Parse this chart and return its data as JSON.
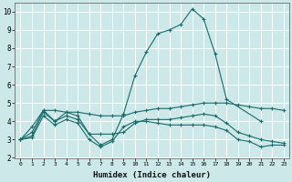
{
  "background_color": "#cce8e8",
  "grid_color": "#ffffff",
  "line_color": "#1a6b6b",
  "xlabel": "Humidex (Indice chaleur)",
  "ylim": [
    2,
    10.5
  ],
  "xlim": [
    -0.5,
    23.5
  ],
  "yticks": [
    2,
    3,
    4,
    5,
    6,
    7,
    8,
    9,
    10
  ],
  "xticks": [
    0,
    1,
    2,
    3,
    4,
    5,
    6,
    7,
    8,
    9,
    10,
    11,
    12,
    13,
    14,
    15,
    16,
    17,
    18,
    19,
    20,
    21,
    22,
    23
  ],
  "series": [
    {
      "x": [
        0,
        1,
        2,
        3,
        4,
        5,
        6,
        7,
        8,
        9,
        10,
        11,
        12,
        13,
        14,
        15,
        16,
        17,
        18,
        21
      ],
      "y": [
        3.0,
        3.7,
        4.6,
        4.0,
        4.5,
        4.3,
        3.3,
        2.7,
        3.0,
        4.4,
        6.5,
        7.8,
        8.8,
        9.0,
        9.3,
        10.15,
        9.6,
        7.7,
        5.2,
        4.0
      ]
    },
    {
      "x": [
        0,
        1,
        2,
        3,
        4,
        5,
        6,
        7,
        8,
        9,
        10,
        11,
        12,
        13,
        14,
        15,
        16,
        17,
        18,
        19,
        20,
        21,
        22,
        23
      ],
      "y": [
        3.0,
        3.4,
        4.6,
        4.6,
        4.5,
        4.5,
        4.4,
        4.3,
        4.3,
        4.3,
        4.5,
        4.6,
        4.7,
        4.7,
        4.8,
        4.9,
        5.0,
        5.0,
        5.0,
        4.9,
        4.8,
        4.7,
        4.7,
        4.6
      ]
    },
    {
      "x": [
        0,
        1,
        2,
        3,
        4,
        5,
        6,
        7,
        8,
        9,
        10,
        11,
        12,
        13,
        14,
        15,
        16,
        17,
        18,
        19,
        20,
        21,
        22,
        23
      ],
      "y": [
        3.0,
        3.2,
        4.5,
        4.0,
        4.3,
        4.1,
        3.3,
        3.3,
        3.3,
        3.4,
        3.9,
        4.1,
        4.1,
        4.1,
        4.2,
        4.3,
        4.4,
        4.3,
        3.9,
        3.4,
        3.2,
        3.0,
        2.9,
        2.8
      ]
    },
    {
      "x": [
        0,
        1,
        2,
        3,
        4,
        5,
        6,
        7,
        8,
        9,
        10,
        11,
        12,
        13,
        14,
        15,
        16,
        17,
        18,
        19,
        20,
        21,
        22,
        23
      ],
      "y": [
        3.0,
        3.1,
        4.3,
        3.8,
        4.1,
        3.9,
        3.0,
        2.6,
        2.9,
        3.7,
        4.0,
        4.0,
        3.9,
        3.8,
        3.8,
        3.8,
        3.8,
        3.7,
        3.5,
        3.0,
        2.9,
        2.6,
        2.7,
        2.7
      ]
    }
  ]
}
